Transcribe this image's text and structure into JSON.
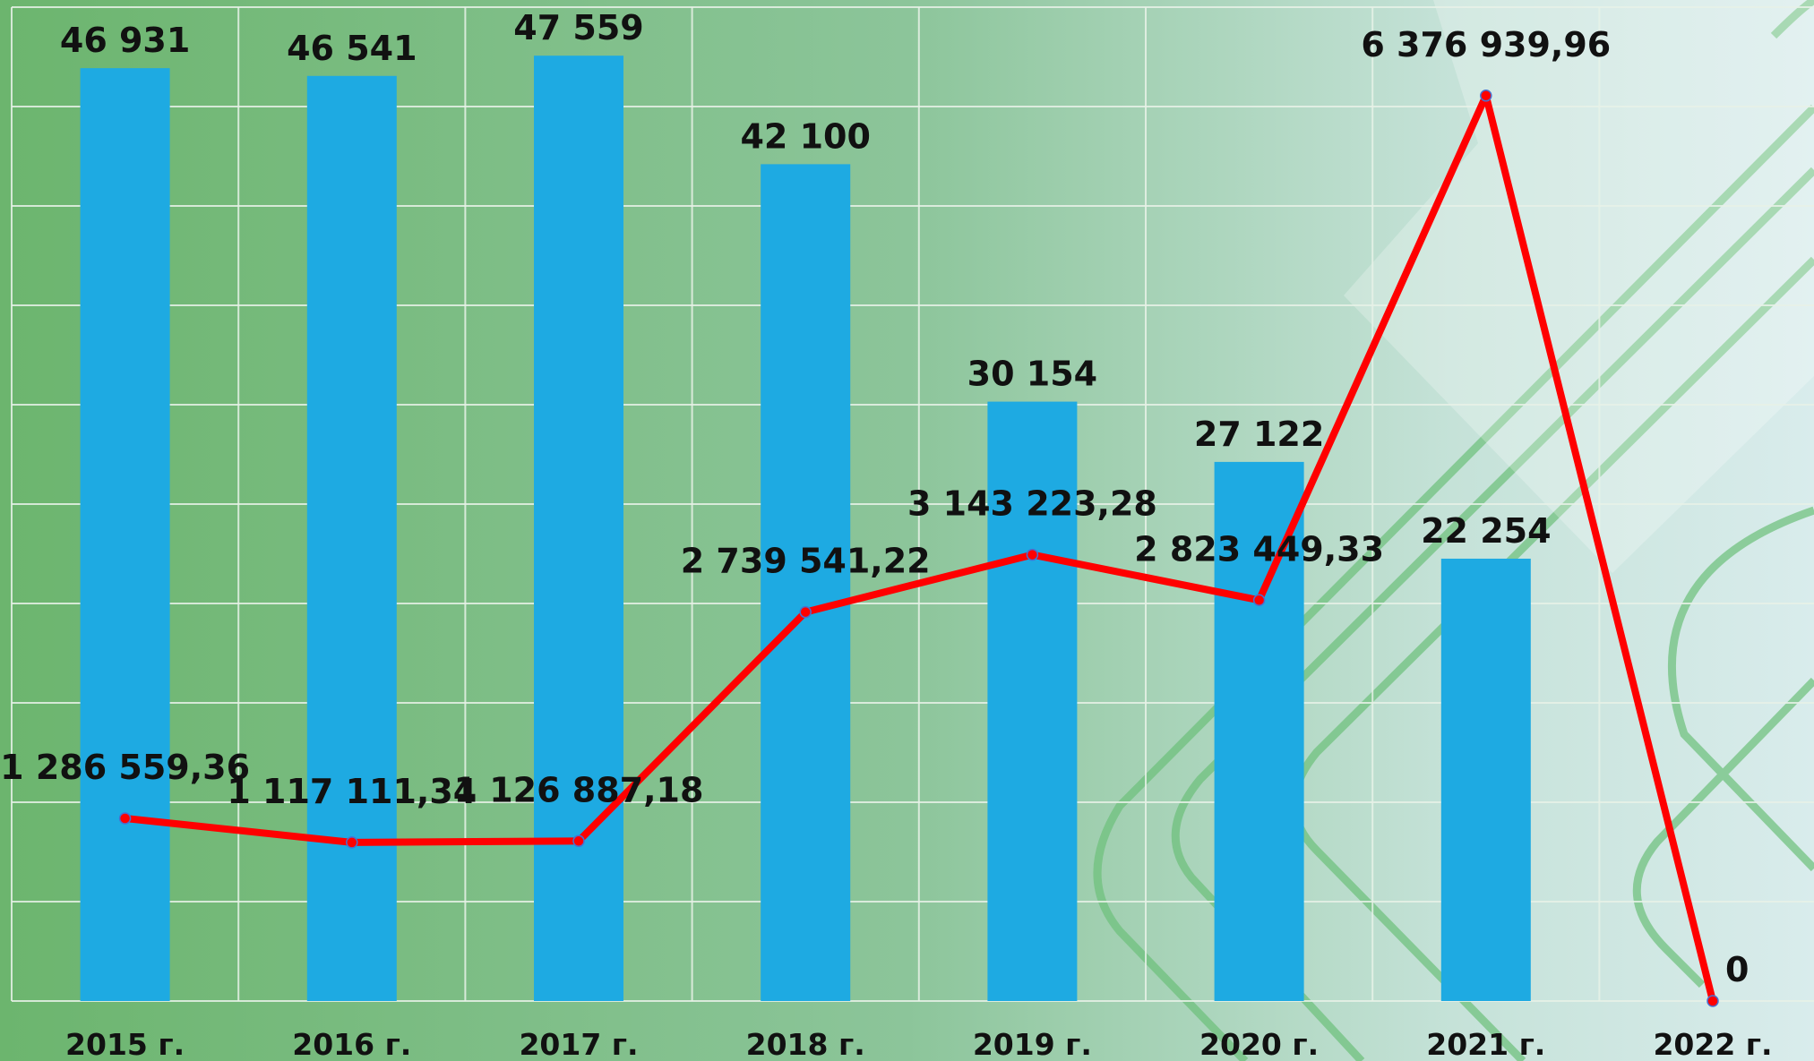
{
  "chart_data": {
    "type": "bar-line",
    "categories": [
      "2015 г.",
      "2016 г.",
      "2017 г.",
      "2018 г.",
      "2019 г.",
      "2020 г.",
      "2021 г.",
      "2022 г."
    ],
    "series": [
      {
        "type": "bar",
        "color": "#1eaae2",
        "values": [
          46931,
          46541,
          47559,
          42100,
          30154,
          27122,
          22254,
          null
        ],
        "value_labels": [
          "46 931",
          "46 541",
          "47 559",
          "42 100",
          "30 154",
          "27 122",
          "22 254",
          null
        ]
      },
      {
        "type": "line",
        "axis": "y2",
        "color": "#ff0000",
        "values": [
          1286559.36,
          1117111.34,
          1126887.18,
          2739541.22,
          3143223.28,
          2823449.33,
          6376939.96,
          0
        ],
        "value_labels": [
          "1 286 559,36",
          "1 117 111,34",
          "1 126 887,18",
          "2 739 541,22",
          "3 143 223,28",
          "2 823 449,33",
          "6 376 939,96",
          "0"
        ]
      }
    ],
    "ylim": [
      0,
      50000
    ],
    "yticks": [
      0,
      5000,
      10000,
      15000,
      20000,
      25000,
      30000,
      35000,
      40000,
      45000,
      50000
    ],
    "y2lim": [
      0,
      7000000
    ],
    "grid": true
  }
}
